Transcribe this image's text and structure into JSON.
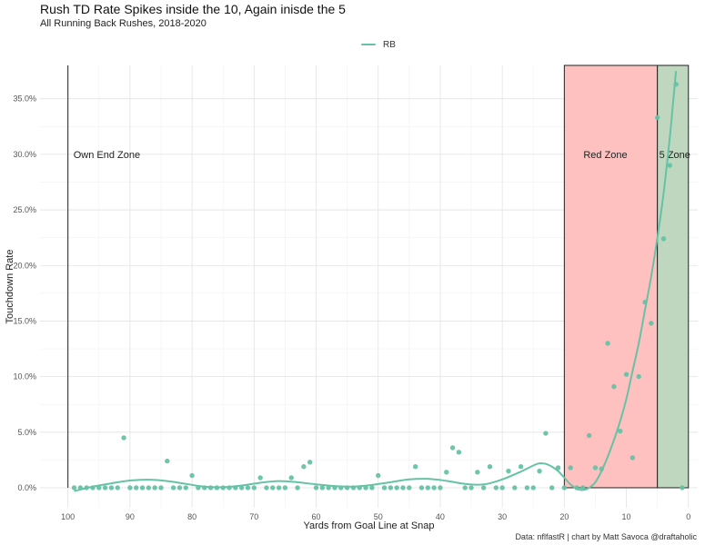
{
  "chart_data": {
    "type": "scatter",
    "title": "Rush TD Rate Spikes inside the 10, Again inisde the 5",
    "subtitle": "All Running Back Rushes, 2018-2020",
    "xlabel": "Yards from Goal Line at Snap",
    "ylabel": "Touchdown Rate",
    "caption": "Data: nflfastR | chart by Matt Savoca @draftaholic",
    "xlim": [
      -1.5,
      104.5
    ],
    "x_reversed": true,
    "ylim": [
      -1.8,
      38
    ],
    "x_ticks": [
      100,
      90,
      80,
      70,
      60,
      50,
      40,
      30,
      20,
      10,
      0
    ],
    "y_ticks": [
      0,
      5,
      10,
      15,
      20,
      25,
      30,
      35
    ],
    "y_tick_labels": [
      "0.0%",
      "5.0%",
      "10.0%",
      "15.0%",
      "20.0%",
      "25.0%",
      "30.0%",
      "35.0%"
    ],
    "grid": true,
    "legend_position": "top",
    "series": [
      {
        "name": "RB",
        "color": "#66c2a5",
        "points": [
          [
            99,
            0
          ],
          [
            98,
            0
          ],
          [
            97,
            0
          ],
          [
            96,
            0
          ],
          [
            95,
            0
          ],
          [
            94,
            0
          ],
          [
            93,
            0
          ],
          [
            92,
            0
          ],
          [
            91,
            4.5
          ],
          [
            90,
            0
          ],
          [
            89,
            0
          ],
          [
            88,
            0
          ],
          [
            87,
            0
          ],
          [
            86,
            0
          ],
          [
            85,
            0
          ],
          [
            84,
            2.4
          ],
          [
            83,
            0
          ],
          [
            82,
            0
          ],
          [
            81,
            0
          ],
          [
            80,
            1.1
          ],
          [
            79,
            0
          ],
          [
            78,
            0
          ],
          [
            77,
            0
          ],
          [
            76,
            0
          ],
          [
            75,
            0
          ],
          [
            74,
            0
          ],
          [
            73,
            0
          ],
          [
            72,
            0
          ],
          [
            71,
            0
          ],
          [
            70,
            0
          ],
          [
            69,
            0.9
          ],
          [
            68,
            0
          ],
          [
            67,
            0
          ],
          [
            66,
            0
          ],
          [
            65,
            0
          ],
          [
            64,
            0.9
          ],
          [
            63,
            0
          ],
          [
            62,
            1.9
          ],
          [
            61,
            2.3
          ],
          [
            60,
            0
          ],
          [
            59,
            0
          ],
          [
            58,
            0
          ],
          [
            57,
            0
          ],
          [
            56,
            0
          ],
          [
            55,
            0
          ],
          [
            54,
            0
          ],
          [
            53,
            0
          ],
          [
            52,
            0
          ],
          [
            51,
            0
          ],
          [
            50,
            1.1
          ],
          [
            49,
            0
          ],
          [
            48,
            0
          ],
          [
            47,
            0
          ],
          [
            46,
            0
          ],
          [
            45,
            0
          ],
          [
            44,
            1.9
          ],
          [
            43,
            0
          ],
          [
            42,
            0
          ],
          [
            41,
            0
          ],
          [
            40,
            0
          ],
          [
            39,
            1.4
          ],
          [
            38,
            3.6
          ],
          [
            37,
            3.2
          ],
          [
            36,
            0
          ],
          [
            35,
            0
          ],
          [
            34,
            1.4
          ],
          [
            33,
            0
          ],
          [
            32,
            1.9
          ],
          [
            31,
            0
          ],
          [
            30,
            0
          ],
          [
            29,
            1.5
          ],
          [
            28,
            0
          ],
          [
            27,
            1.9
          ],
          [
            26,
            0
          ],
          [
            25,
            0
          ],
          [
            24,
            1.5
          ],
          [
            23,
            4.9
          ],
          [
            22,
            0
          ],
          [
            21,
            1.8
          ],
          [
            20,
            0
          ],
          [
            19,
            1.8
          ],
          [
            18,
            0
          ],
          [
            17,
            0
          ],
          [
            16,
            4.7
          ],
          [
            15,
            1.8
          ],
          [
            14,
            1.7
          ],
          [
            13,
            13.0
          ],
          [
            12,
            9.1
          ],
          [
            11,
            5.1
          ],
          [
            10,
            10.2
          ],
          [
            9,
            2.7
          ],
          [
            8,
            10.0
          ],
          [
            7,
            16.7
          ],
          [
            6,
            14.8
          ],
          [
            5,
            33.3
          ],
          [
            4,
            22.4
          ],
          [
            3,
            29.0
          ],
          [
            2,
            36.3
          ],
          [
            1,
            0
          ]
        ],
        "smooth_curve": [
          [
            99,
            -0.3
          ],
          [
            96,
            0.1
          ],
          [
            93,
            0.4
          ],
          [
            90,
            0.65
          ],
          [
            87,
            0.72
          ],
          [
            84,
            0.6
          ],
          [
            81,
            0.35
          ],
          [
            78,
            0.1
          ],
          [
            75,
            0.05
          ],
          [
            72,
            0.2
          ],
          [
            69,
            0.45
          ],
          [
            66,
            0.6
          ],
          [
            63,
            0.5
          ],
          [
            60,
            0.3
          ],
          [
            57,
            0.15
          ],
          [
            54,
            0.1
          ],
          [
            51,
            0.25
          ],
          [
            48,
            0.5
          ],
          [
            45,
            0.75
          ],
          [
            42,
            0.8
          ],
          [
            39,
            0.62
          ],
          [
            36,
            0.35
          ],
          [
            33,
            0.3
          ],
          [
            30,
            0.75
          ],
          [
            27,
            1.45
          ],
          [
            25,
            2.0
          ],
          [
            24,
            2.2
          ],
          [
            23,
            2.15
          ],
          [
            22,
            1.9
          ],
          [
            21,
            1.5
          ],
          [
            20,
            0.9
          ],
          [
            19,
            0.3
          ],
          [
            18,
            -0.1
          ],
          [
            17,
            -0.2
          ],
          [
            16,
            0
          ],
          [
            15,
            0.5
          ],
          [
            14,
            1.5
          ],
          [
            13,
            2.8
          ],
          [
            12,
            4.3
          ],
          [
            11,
            6.0
          ],
          [
            10,
            8.0
          ],
          [
            9,
            10.5
          ],
          [
            8,
            13.0
          ],
          [
            7,
            16.0
          ],
          [
            6,
            19.0
          ],
          [
            5,
            22.5
          ],
          [
            4,
            26.5
          ],
          [
            3,
            31.5
          ],
          [
            2.5,
            34.5
          ],
          [
            2,
            37.5
          ]
        ]
      }
    ],
    "zones": [
      {
        "label": "Own End Zone",
        "x_start": 100,
        "x_end": 100,
        "fill": "none"
      },
      {
        "label": "Red Zone",
        "x_start": 20,
        "x_end": 5,
        "fill": "#ffc0c0"
      },
      {
        "label": "5 Zone",
        "x_start": 5,
        "x_end": 0,
        "fill": "#bfd7bf"
      }
    ]
  }
}
